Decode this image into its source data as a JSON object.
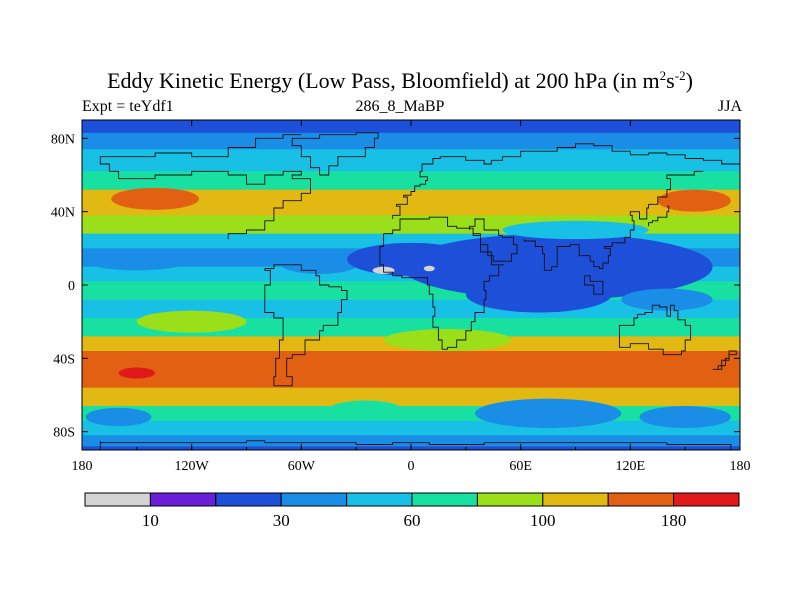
{
  "chart_data": {
    "type": "heatmap",
    "title": {
      "main": "Eddy Kinetic Energy (Low Pass, Bloomfield) at 200 hPa (in m",
      "sup1": "2",
      "mid": "s",
      "sup2": "-2",
      "end": ")"
    },
    "left_label": "Expt = teYdf1",
    "center_label": "286_8_MaBP",
    "right_label": "JJA",
    "x_axis": {
      "range": [
        -180,
        180
      ],
      "ticks": [
        {
          "value": -180,
          "label": "180"
        },
        {
          "value": -120,
          "label": "120W"
        },
        {
          "value": -60,
          "label": "60W"
        },
        {
          "value": 0,
          "label": "0"
        },
        {
          "value": 60,
          "label": "60E"
        },
        {
          "value": 120,
          "label": "120E"
        },
        {
          "value": 180,
          "label": "180"
        }
      ]
    },
    "y_axis": {
      "range": [
        -90,
        90
      ],
      "ticks": [
        {
          "value": 80,
          "label": "80N"
        },
        {
          "value": 40,
          "label": "40N"
        },
        {
          "value": 0,
          "label": "0"
        },
        {
          "value": -40,
          "label": "40S"
        },
        {
          "value": -80,
          "label": "80S"
        }
      ]
    },
    "colorbar": {
      "colors": [
        "#d4d4d4",
        "#6a1fd8",
        "#1e4fd8",
        "#1a8ee6",
        "#18c0e6",
        "#18e0a0",
        "#9bde1a",
        "#e2b812",
        "#e26012",
        "#e01a1a"
      ],
      "labels": [
        {
          "after_box": 1,
          "text": "10"
        },
        {
          "after_box": 3,
          "text": "30"
        },
        {
          "after_box": 5,
          "text": "60"
        },
        {
          "after_box": 7,
          "text": "100"
        },
        {
          "after_box": 9,
          "text": "180"
        }
      ]
    },
    "latitude_bands": [
      {
        "lat_top": 90,
        "lat_bottom": 83,
        "level": 2
      },
      {
        "lat_top": 83,
        "lat_bottom": 74,
        "level": 3
      },
      {
        "lat_top": 74,
        "lat_bottom": 62,
        "level": 4
      },
      {
        "lat_top": 62,
        "lat_bottom": 52,
        "level": 5
      },
      {
        "lat_top": 52,
        "lat_bottom": 38,
        "level": 7
      },
      {
        "lat_top": 38,
        "lat_bottom": 28,
        "level": 6
      },
      {
        "lat_top": 28,
        "lat_bottom": 20,
        "level": 4
      },
      {
        "lat_top": 20,
        "lat_bottom": 10,
        "level": 3
      },
      {
        "lat_top": 10,
        "lat_bottom": 2,
        "level": 4
      },
      {
        "lat_top": 2,
        "lat_bottom": -8,
        "level": 5
      },
      {
        "lat_top": -8,
        "lat_bottom": -18,
        "level": 4
      },
      {
        "lat_top": -18,
        "lat_bottom": -28,
        "level": 5
      },
      {
        "lat_top": -28,
        "lat_bottom": -36,
        "level": 7
      },
      {
        "lat_top": -36,
        "lat_bottom": -56,
        "level": 8
      },
      {
        "lat_top": -56,
        "lat_bottom": -66,
        "level": 7
      },
      {
        "lat_top": -66,
        "lat_bottom": -74,
        "level": 5
      },
      {
        "lat_top": -74,
        "lat_bottom": -82,
        "level": 4
      },
      {
        "lat_top": -82,
        "lat_bottom": -88,
        "level": 3
      },
      {
        "lat_top": -88,
        "lat_bottom": -90,
        "level": 2
      }
    ],
    "regional_patches": [
      {
        "lon": -140,
        "lat": 47,
        "rlon": 24,
        "rlat": 6,
        "level": 8
      },
      {
        "lon": 155,
        "lat": 46,
        "rlon": 20,
        "rlat": 6,
        "level": 8
      },
      {
        "lon": -150,
        "lat": 13,
        "rlon": 28,
        "rlat": 5,
        "level": 3
      },
      {
        "lon": -50,
        "lat": 12,
        "rlon": 22,
        "rlat": 6,
        "level": 3
      },
      {
        "lon": 80,
        "lat": 10,
        "rlon": 85,
        "rlat": 18,
        "level": 2
      },
      {
        "lon": 0,
        "lat": 14,
        "rlon": 35,
        "rlat": 9,
        "level": 2
      },
      {
        "lon": 70,
        "lat": -5,
        "rlon": 40,
        "rlat": 10,
        "level": 2
      },
      {
        "lon": 140,
        "lat": -8,
        "rlon": 25,
        "rlat": 6,
        "level": 3
      },
      {
        "lon": 90,
        "lat": 30,
        "rlon": 40,
        "rlat": 5,
        "level": 4
      },
      {
        "lon": -120,
        "lat": -20,
        "rlon": 30,
        "rlat": 6,
        "level": 6
      },
      {
        "lon": 20,
        "lat": -30,
        "rlon": 35,
        "rlat": 6,
        "level": 6
      },
      {
        "lon": -140,
        "lat": -46,
        "rlon": 28,
        "rlat": 8,
        "level": 8
      },
      {
        "lon": -150,
        "lat": -48,
        "rlon": 10,
        "rlat": 3,
        "level": 9
      },
      {
        "lon": 165,
        "lat": -45,
        "rlon": 15,
        "rlat": 8,
        "level": 8
      },
      {
        "lon": 75,
        "lat": -70,
        "rlon": 40,
        "rlat": 8,
        "level": 3
      },
      {
        "lon": 150,
        "lat": -72,
        "rlon": 25,
        "rlat": 6,
        "level": 3
      },
      {
        "lon": -160,
        "lat": -72,
        "rlon": 18,
        "rlat": 5,
        "level": 3
      },
      {
        "lon": -25,
        "lat": -68,
        "rlon": 20,
        "rlat": 5,
        "level": 5
      },
      {
        "lon": -15,
        "lat": 8,
        "rlon": 6,
        "rlat": 2,
        "level": 0
      },
      {
        "lon": 10,
        "lat": 9,
        "rlon": 3,
        "rlat": 1.5,
        "level": 0
      }
    ],
    "coastlines": [
      [
        [
          -170,
          -90
        ],
        [
          -170,
          -85
        ],
        [
          -120,
          -86
        ],
        [
          -90,
          -86
        ],
        [
          -80,
          -85
        ],
        [
          -50,
          -86
        ],
        [
          -30,
          -86
        ],
        [
          -10,
          -87
        ],
        [
          10,
          -86
        ],
        [
          40,
          -87
        ],
        [
          80,
          -86
        ],
        [
          140,
          -86
        ],
        [
          175,
          -87
        ],
        [
          180,
          -90
        ]
      ],
      [
        [
          -100,
          25
        ],
        [
          -90,
          28
        ],
        [
          -80,
          30
        ],
        [
          -75,
          35
        ],
        [
          -70,
          42
        ],
        [
          -60,
          46
        ],
        [
          -55,
          50
        ],
        [
          -65,
          58
        ],
        [
          -60,
          60
        ],
        [
          -70,
          62
        ],
        [
          -80,
          60
        ],
        [
          -90,
          55
        ],
        [
          -100,
          60
        ],
        [
          -120,
          62
        ],
        [
          -140,
          60
        ],
        [
          -160,
          58
        ],
        [
          -165,
          62
        ],
        [
          -170,
          66
        ],
        [
          -160,
          70
        ],
        [
          -140,
          70
        ],
        [
          -120,
          72
        ],
        [
          -100,
          70
        ],
        [
          -85,
          75
        ],
        [
          -70,
          80
        ],
        [
          -60,
          82
        ]
      ],
      [
        [
          -80,
          9
        ],
        [
          -77,
          8
        ],
        [
          -80,
          0
        ],
        [
          -80,
          -5
        ],
        [
          -75,
          -15
        ],
        [
          -70,
          -18
        ],
        [
          -72,
          -30
        ],
        [
          -74,
          -40
        ],
        [
          -75,
          -50
        ],
        [
          -70,
          -55
        ],
        [
          -65,
          -55
        ],
        [
          -68,
          -50
        ],
        [
          -65,
          -40
        ],
        [
          -58,
          -38
        ],
        [
          -50,
          -30
        ],
        [
          -48,
          -25
        ],
        [
          -40,
          -22
        ],
        [
          -38,
          -15
        ],
        [
          -35,
          -8
        ],
        [
          -38,
          -3
        ],
        [
          -45,
          -1
        ],
        [
          -50,
          0
        ],
        [
          -52,
          5
        ],
        [
          -60,
          8
        ],
        [
          -70,
          11
        ],
        [
          -75,
          11
        ],
        [
          -80,
          9
        ]
      ],
      [
        [
          -10,
          36
        ],
        [
          -6,
          38
        ],
        [
          -8,
          43
        ],
        [
          -2,
          44
        ],
        [
          -4,
          48
        ],
        [
          0,
          49
        ],
        [
          2,
          51
        ],
        [
          5,
          54
        ],
        [
          8,
          55
        ],
        [
          9,
          57
        ],
        [
          5,
          59
        ],
        [
          6,
          62
        ],
        [
          12,
          66
        ],
        [
          16,
          69
        ],
        [
          22,
          70
        ],
        [
          30,
          70
        ],
        [
          40,
          68
        ],
        [
          44,
          66
        ],
        [
          50,
          68
        ],
        [
          60,
          70
        ],
        [
          70,
          73
        ],
        [
          80,
          73
        ],
        [
          90,
          75
        ],
        [
          100,
          77
        ],
        [
          110,
          76
        ],
        [
          120,
          73
        ],
        [
          130,
          71
        ],
        [
          140,
          72
        ],
        [
          150,
          71
        ],
        [
          160,
          69
        ],
        [
          170,
          68
        ],
        [
          180,
          66
        ]
      ],
      [
        [
          -15,
          28
        ],
        [
          -17,
          21
        ],
        [
          -17,
          15
        ],
        [
          -15,
          11
        ],
        [
          -10,
          7
        ],
        [
          -5,
          5
        ],
        [
          5,
          4
        ],
        [
          9,
          4
        ],
        [
          10,
          0
        ],
        [
          12,
          -5
        ],
        [
          13,
          -12
        ],
        [
          12,
          -17
        ],
        [
          15,
          -23
        ],
        [
          17,
          -30
        ],
        [
          20,
          -35
        ],
        [
          25,
          -34
        ],
        [
          30,
          -30
        ],
        [
          33,
          -25
        ],
        [
          35,
          -20
        ],
        [
          40,
          -15
        ],
        [
          41,
          -8
        ],
        [
          40,
          -3
        ],
        [
          43,
          2
        ],
        [
          48,
          5
        ],
        [
          51,
          11
        ],
        [
          44,
          11
        ],
        [
          38,
          18
        ],
        [
          34,
          27
        ],
        [
          32,
          31
        ],
        [
          25,
          31
        ],
        [
          20,
          32
        ],
        [
          10,
          37
        ],
        [
          0,
          36
        ],
        [
          -6,
          36
        ],
        [
          -10,
          30
        ],
        [
          -15,
          28
        ]
      ],
      [
        [
          32,
          30
        ],
        [
          35,
          32
        ],
        [
          36,
          36
        ],
        [
          40,
          36
        ],
        [
          48,
          30
        ],
        [
          50,
          27
        ],
        [
          56,
          26
        ],
        [
          58,
          22
        ],
        [
          55,
          17
        ],
        [
          45,
          13
        ],
        [
          42,
          16
        ],
        [
          38,
          22
        ],
        [
          34,
          28
        ]
      ],
      [
        [
          62,
          25
        ],
        [
          68,
          24
        ],
        [
          72,
          21
        ],
        [
          73,
          17
        ],
        [
          77,
          8
        ],
        [
          80,
          10
        ],
        [
          80,
          15
        ],
        [
          87,
          21
        ],
        [
          92,
          22
        ],
        [
          98,
          16
        ],
        [
          100,
          13
        ],
        [
          103,
          10
        ],
        [
          105,
          9
        ],
        [
          108,
          12
        ],
        [
          109,
          16
        ],
        [
          106,
          20
        ],
        [
          110,
          21
        ],
        [
          117,
          23
        ],
        [
          120,
          26
        ],
        [
          122,
          30
        ],
        [
          121,
          35
        ],
        [
          120,
          38
        ],
        [
          122,
          40
        ],
        [
          125,
          40
        ],
        [
          129,
          36
        ],
        [
          130,
          42
        ],
        [
          135,
          44
        ],
        [
          140,
          48
        ],
        [
          142,
          52
        ],
        [
          140,
          58
        ],
        [
          145,
          60
        ],
        [
          155,
          60
        ],
        [
          160,
          62
        ]
      ],
      [
        [
          114,
          -22
        ],
        [
          114,
          -26
        ],
        [
          115,
          -34
        ],
        [
          120,
          -34
        ],
        [
          130,
          -32
        ],
        [
          138,
          -35
        ],
        [
          142,
          -38
        ],
        [
          148,
          -38
        ],
        [
          150,
          -36
        ],
        [
          153,
          -30
        ],
        [
          153,
          -25
        ],
        [
          150,
          -22
        ],
        [
          146,
          -19
        ],
        [
          144,
          -14
        ],
        [
          142,
          -11
        ],
        [
          140,
          -17
        ],
        [
          136,
          -12
        ],
        [
          132,
          -11
        ],
        [
          128,
          -15
        ],
        [
          124,
          -16
        ],
        [
          122,
          -18
        ],
        [
          114,
          -22
        ]
      ],
      [
        [
          165,
          -46
        ],
        [
          170,
          -46
        ],
        [
          174,
          -41
        ],
        [
          178,
          -38
        ],
        [
          174,
          -36
        ],
        [
          172,
          -40
        ],
        [
          168,
          -44
        ],
        [
          165,
          -46
        ]
      ],
      [
        [
          -50,
          60
        ],
        [
          -45,
          60
        ],
        [
          -40,
          65
        ],
        [
          -25,
          70
        ],
        [
          -20,
          75
        ],
        [
          -18,
          80
        ],
        [
          -30,
          83
        ],
        [
          -50,
          82
        ],
        [
          -65,
          80
        ],
        [
          -60,
          76
        ],
        [
          -55,
          70
        ],
        [
          -50,
          64
        ],
        [
          -50,
          60
        ]
      ],
      [
        [
          95,
          5
        ],
        [
          100,
          0
        ],
        [
          105,
          -5
        ],
        [
          98,
          2
        ],
        [
          95,
          5
        ]
      ],
      [
        [
          130,
          32
        ],
        [
          132,
          34
        ],
        [
          135,
          35
        ],
        [
          140,
          37
        ],
        [
          141,
          40
        ],
        [
          140,
          43
        ]
      ]
    ]
  }
}
